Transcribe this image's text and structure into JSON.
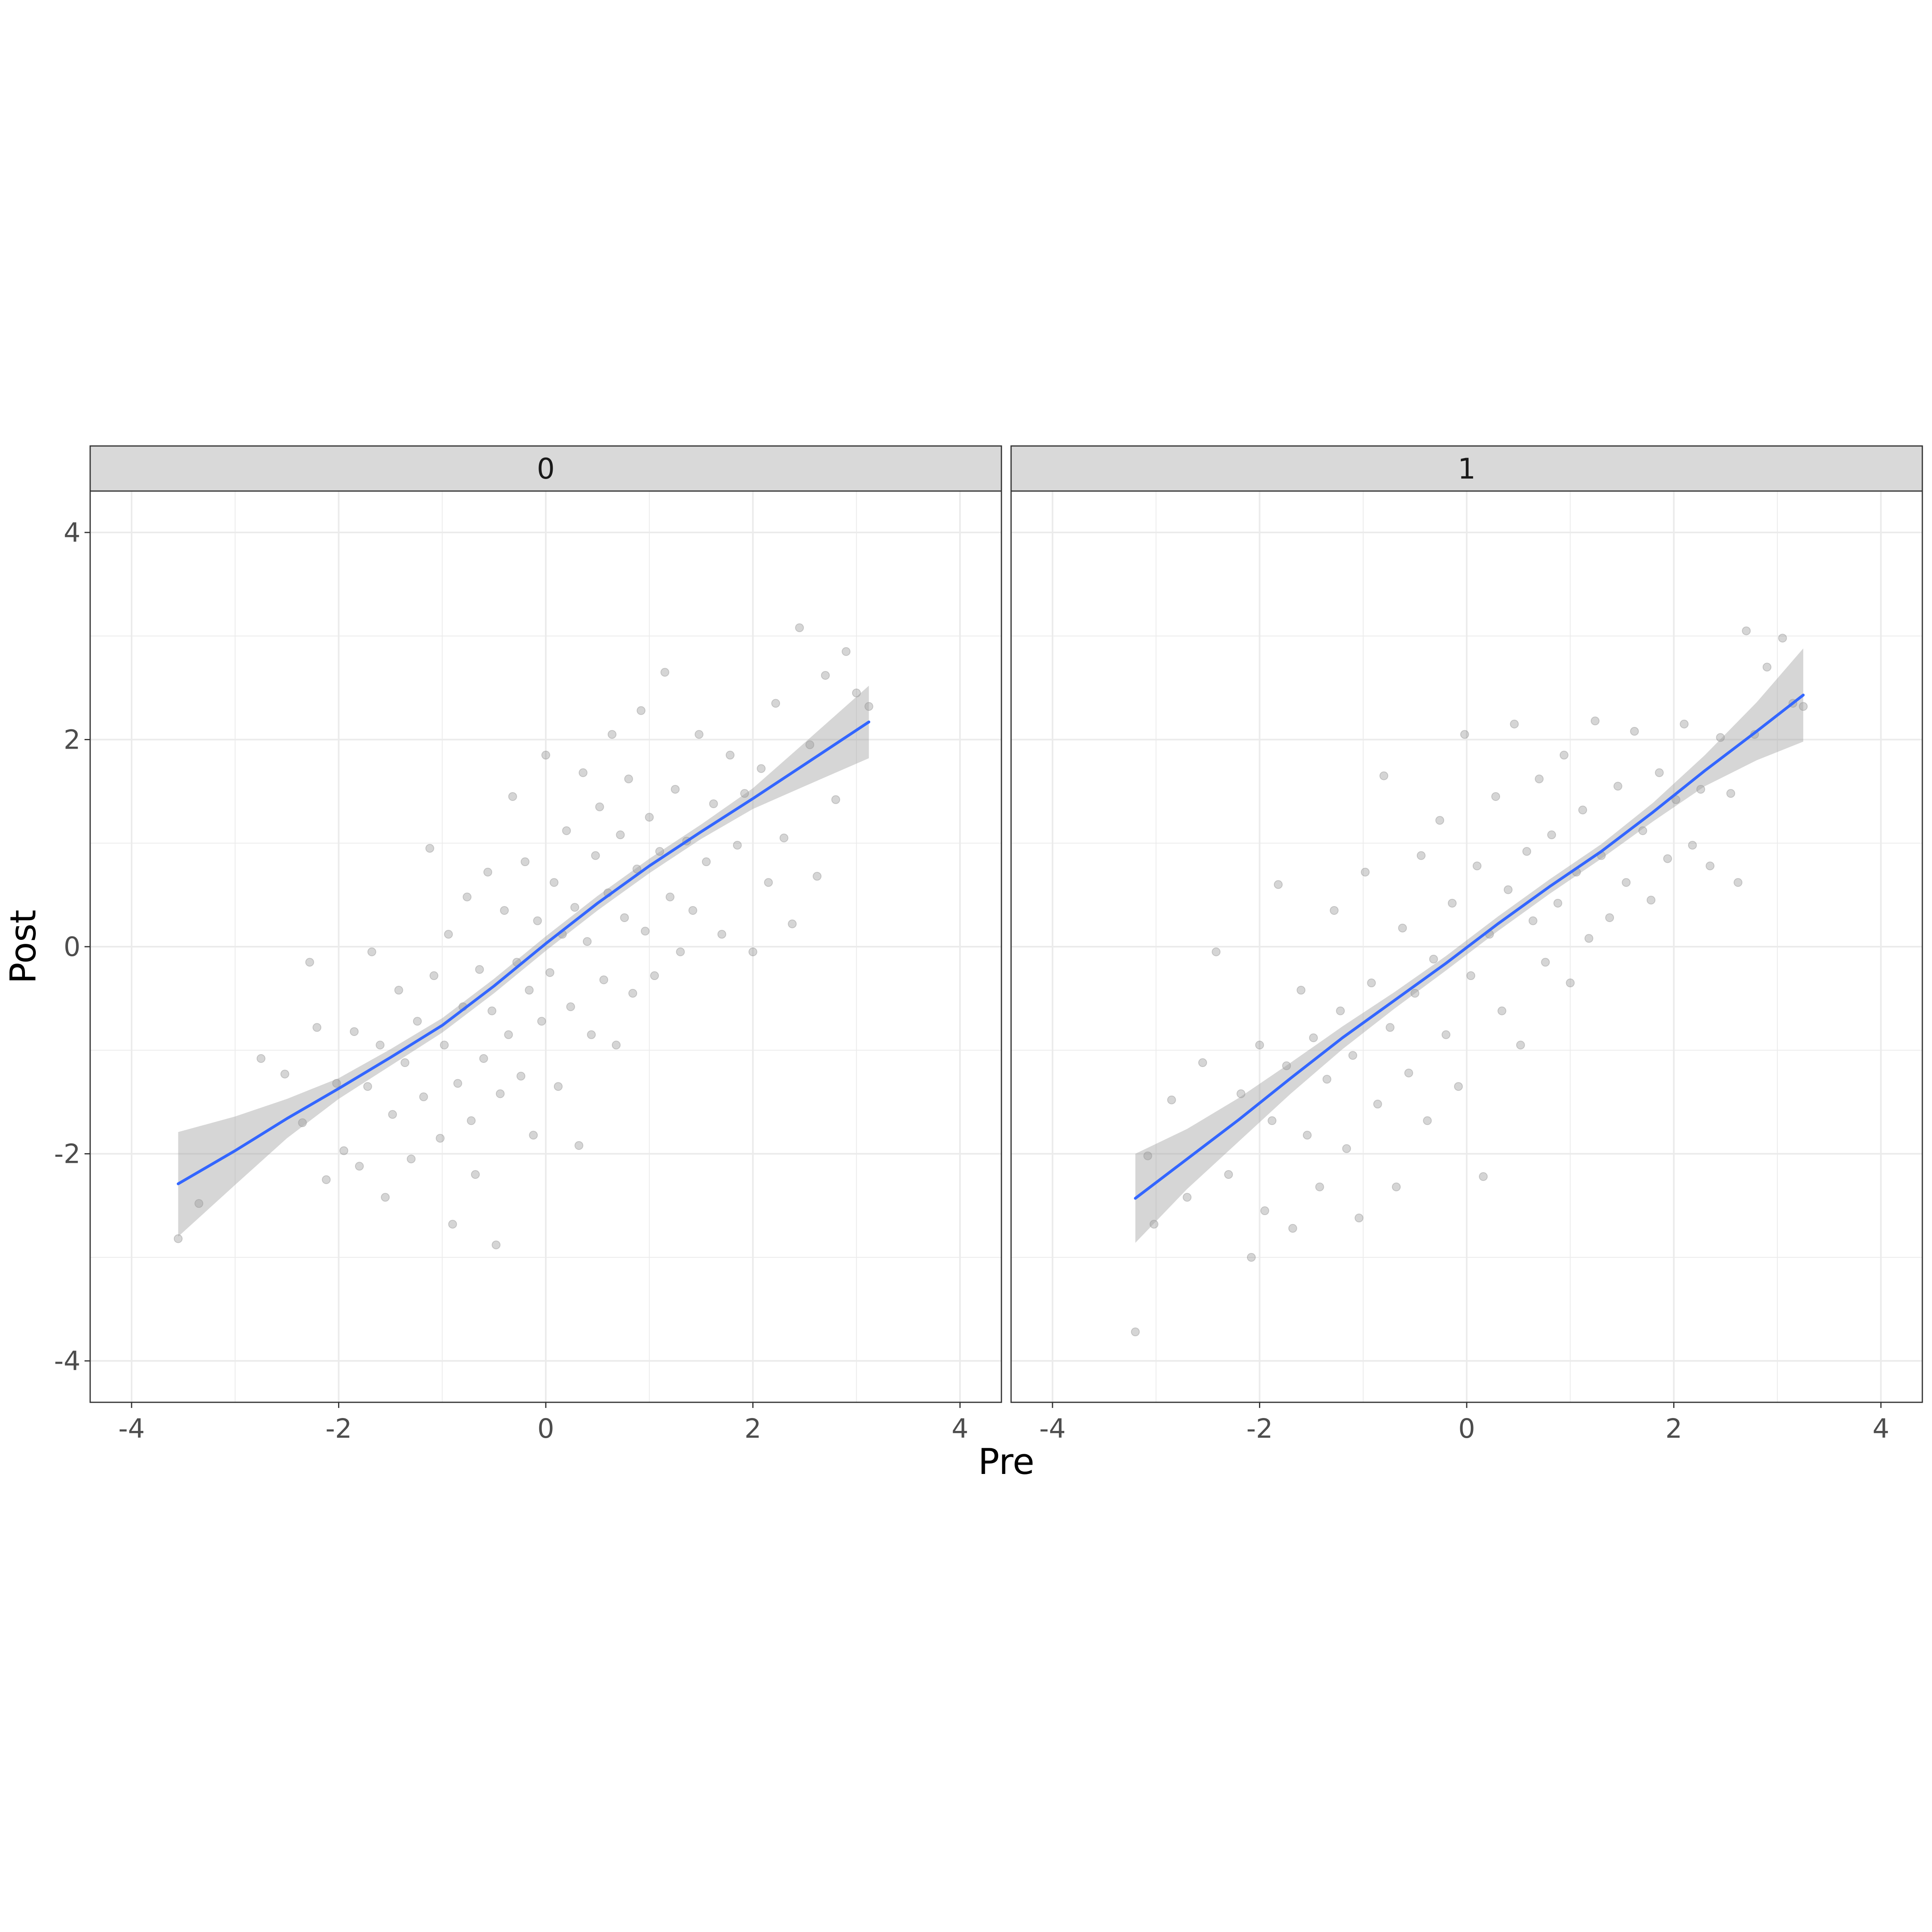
{
  "chart_data": {
    "type": "scatter",
    "xlabel": "Pre",
    "ylabel": "Post",
    "xlim": [
      -4.4,
      4.4
    ],
    "ylim": [
      -4.4,
      4.4
    ],
    "x_ticks": [
      "-4",
      "-2",
      "0",
      "2",
      "4"
    ],
    "y_ticks": [
      "-4",
      "-2",
      "0",
      "2",
      "4"
    ],
    "grid": true,
    "colors": {
      "points": "#595959",
      "smooth_line": "#3366ff",
      "ribbon": "#999999",
      "strip_fill": "#d9d9d9",
      "grid": "#ebebeb",
      "panel_border": "#333333"
    },
    "panels": [
      {
        "strip_label": "0",
        "smooth": {
          "x": [
            -3.55,
            -3.0,
            -2.5,
            -2.0,
            -1.5,
            -1.0,
            -0.5,
            0.0,
            0.5,
            1.0,
            1.5,
            2.0,
            2.5,
            3.12
          ],
          "y": [
            -2.29,
            -1.97,
            -1.66,
            -1.37,
            -1.07,
            -0.76,
            -0.38,
            0.03,
            0.42,
            0.78,
            1.11,
            1.43,
            1.76,
            2.17
          ],
          "lower": [
            -2.8,
            -2.3,
            -1.85,
            -1.47,
            -1.15,
            -0.83,
            -0.45,
            -0.04,
            0.35,
            0.71,
            1.04,
            1.33,
            1.55,
            1.82
          ],
          "upper": [
            -1.79,
            -1.64,
            -1.47,
            -1.27,
            -0.99,
            -0.69,
            -0.31,
            0.1,
            0.49,
            0.85,
            1.18,
            1.53,
            1.97,
            2.52
          ]
        },
        "points": [
          [
            -3.55,
            -2.82
          ],
          [
            -3.35,
            -2.48
          ],
          [
            -2.75,
            -1.08
          ],
          [
            -2.52,
            -1.23
          ],
          [
            -2.35,
            -1.7
          ],
          [
            -2.28,
            -0.15
          ],
          [
            -2.21,
            -0.78
          ],
          [
            -2.12,
            -2.25
          ],
          [
            -2.02,
            -1.32
          ],
          [
            -1.95,
            -1.97
          ],
          [
            -1.85,
            -0.82
          ],
          [
            -1.8,
            -2.12
          ],
          [
            -1.72,
            -1.35
          ],
          [
            -1.68,
            -0.05
          ],
          [
            -1.6,
            -0.95
          ],
          [
            -1.55,
            -2.42
          ],
          [
            -1.48,
            -1.62
          ],
          [
            -1.42,
            -0.42
          ],
          [
            -1.36,
            -1.12
          ],
          [
            -1.3,
            -2.05
          ],
          [
            -1.24,
            -0.72
          ],
          [
            -1.18,
            -1.45
          ],
          [
            -1.12,
            0.95
          ],
          [
            -1.08,
            -0.28
          ],
          [
            -1.02,
            -1.85
          ],
          [
            -0.98,
            -0.95
          ],
          [
            -0.94,
            0.12
          ],
          [
            -0.9,
            -2.68
          ],
          [
            -0.85,
            -1.32
          ],
          [
            -0.8,
            -0.58
          ],
          [
            -0.76,
            0.48
          ],
          [
            -0.72,
            -1.68
          ],
          [
            -0.68,
            -2.2
          ],
          [
            -0.64,
            -0.22
          ],
          [
            -0.6,
            -1.08
          ],
          [
            -0.56,
            0.72
          ],
          [
            -0.52,
            -0.62
          ],
          [
            -0.48,
            -2.88
          ],
          [
            -0.44,
            -1.42
          ],
          [
            -0.4,
            0.35
          ],
          [
            -0.36,
            -0.85
          ],
          [
            -0.32,
            1.45
          ],
          [
            -0.28,
            -0.15
          ],
          [
            -0.24,
            -1.25
          ],
          [
            -0.2,
            0.82
          ],
          [
            -0.16,
            -0.42
          ],
          [
            -0.12,
            -1.82
          ],
          [
            -0.08,
            0.25
          ],
          [
            -0.04,
            -0.72
          ],
          [
            0.0,
            1.85
          ],
          [
            0.04,
            -0.25
          ],
          [
            0.08,
            0.62
          ],
          [
            0.12,
            -1.35
          ],
          [
            0.16,
            0.12
          ],
          [
            0.2,
            1.12
          ],
          [
            0.24,
            -0.58
          ],
          [
            0.28,
            0.38
          ],
          [
            0.32,
            -1.92
          ],
          [
            0.36,
            1.68
          ],
          [
            0.4,
            0.05
          ],
          [
            0.44,
            -0.85
          ],
          [
            0.48,
            0.88
          ],
          [
            0.52,
            1.35
          ],
          [
            0.56,
            -0.32
          ],
          [
            0.6,
            0.52
          ],
          [
            0.64,
            2.05
          ],
          [
            0.68,
            -0.95
          ],
          [
            0.72,
            1.08
          ],
          [
            0.76,
            0.28
          ],
          [
            0.8,
            1.62
          ],
          [
            0.84,
            -0.45
          ],
          [
            0.88,
            0.75
          ],
          [
            0.92,
            2.28
          ],
          [
            0.96,
            0.15
          ],
          [
            1.0,
            1.25
          ],
          [
            1.05,
            -0.28
          ],
          [
            1.1,
            0.92
          ],
          [
            1.15,
            2.65
          ],
          [
            1.2,
            0.48
          ],
          [
            1.25,
            1.52
          ],
          [
            1.3,
            -0.05
          ],
          [
            1.36,
            1.02
          ],
          [
            1.42,
            0.35
          ],
          [
            1.48,
            2.05
          ],
          [
            1.55,
            0.82
          ],
          [
            1.62,
            1.38
          ],
          [
            1.7,
            0.12
          ],
          [
            1.78,
            1.85
          ],
          [
            1.85,
            0.98
          ],
          [
            1.92,
            1.48
          ],
          [
            2.0,
            -0.05
          ],
          [
            2.08,
            1.72
          ],
          [
            2.15,
            0.62
          ],
          [
            2.22,
            2.35
          ],
          [
            2.3,
            1.05
          ],
          [
            2.38,
            0.22
          ],
          [
            2.45,
            3.08
          ],
          [
            2.55,
            1.95
          ],
          [
            2.62,
            0.68
          ],
          [
            2.7,
            2.62
          ],
          [
            2.8,
            1.42
          ],
          [
            2.9,
            2.85
          ],
          [
            3.0,
            2.45
          ],
          [
            3.12,
            2.32
          ]
        ]
      },
      {
        "strip_label": "1",
        "smooth": {
          "x": [
            -3.2,
            -2.7,
            -2.2,
            -1.7,
            -1.2,
            -0.7,
            -0.2,
            0.3,
            0.8,
            1.3,
            1.8,
            2.3,
            2.8,
            3.25
          ],
          "y": [
            -2.43,
            -2.05,
            -1.67,
            -1.27,
            -0.88,
            -0.52,
            -0.16,
            0.22,
            0.58,
            0.92,
            1.3,
            1.7,
            2.08,
            2.43
          ],
          "lower": [
            -2.86,
            -2.34,
            -1.88,
            -1.42,
            -0.99,
            -0.6,
            -0.23,
            0.15,
            0.51,
            0.85,
            1.21,
            1.55,
            1.8,
            1.98
          ],
          "upper": [
            -2.0,
            -1.76,
            -1.46,
            -1.12,
            -0.77,
            -0.44,
            -0.09,
            0.29,
            0.65,
            0.99,
            1.39,
            1.85,
            2.36,
            2.88
          ]
        },
        "points": [
          [
            -3.2,
            -3.72
          ],
          [
            -3.08,
            -2.02
          ],
          [
            -3.02,
            -2.68
          ],
          [
            -2.85,
            -1.48
          ],
          [
            -2.7,
            -2.42
          ],
          [
            -2.55,
            -1.12
          ],
          [
            -2.42,
            -0.05
          ],
          [
            -2.3,
            -2.2
          ],
          [
            -2.18,
            -1.42
          ],
          [
            -2.08,
            -3.0
          ],
          [
            -2.0,
            -0.95
          ],
          [
            -1.95,
            -2.55
          ],
          [
            -1.88,
            -1.68
          ],
          [
            -1.82,
            0.6
          ],
          [
            -1.74,
            -1.15
          ],
          [
            -1.68,
            -2.72
          ],
          [
            -1.6,
            -0.42
          ],
          [
            -1.54,
            -1.82
          ],
          [
            -1.48,
            -0.88
          ],
          [
            -1.42,
            -2.32
          ],
          [
            -1.35,
            -1.28
          ],
          [
            -1.28,
            0.35
          ],
          [
            -1.22,
            -0.62
          ],
          [
            -1.16,
            -1.95
          ],
          [
            -1.1,
            -1.05
          ],
          [
            -1.04,
            -2.62
          ],
          [
            -0.98,
            0.72
          ],
          [
            -0.92,
            -0.35
          ],
          [
            -0.86,
            -1.52
          ],
          [
            -0.8,
            1.65
          ],
          [
            -0.74,
            -0.78
          ],
          [
            -0.68,
            -2.32
          ],
          [
            -0.62,
            0.18
          ],
          [
            -0.56,
            -1.22
          ],
          [
            -0.5,
            -0.45
          ],
          [
            -0.44,
            0.88
          ],
          [
            -0.38,
            -1.68
          ],
          [
            -0.32,
            -0.12
          ],
          [
            -0.26,
            1.22
          ],
          [
            -0.2,
            -0.85
          ],
          [
            -0.14,
            0.42
          ],
          [
            -0.08,
            -1.35
          ],
          [
            -0.02,
            2.05
          ],
          [
            0.04,
            -0.28
          ],
          [
            0.1,
            0.78
          ],
          [
            0.16,
            -2.22
          ],
          [
            0.22,
            0.12
          ],
          [
            0.28,
            1.45
          ],
          [
            0.34,
            -0.62
          ],
          [
            0.4,
            0.55
          ],
          [
            0.46,
            2.15
          ],
          [
            0.52,
            -0.95
          ],
          [
            0.58,
            0.92
          ],
          [
            0.64,
            0.25
          ],
          [
            0.7,
            1.62
          ],
          [
            0.76,
            -0.15
          ],
          [
            0.82,
            1.08
          ],
          [
            0.88,
            0.42
          ],
          [
            0.94,
            1.85
          ],
          [
            1.0,
            -0.35
          ],
          [
            1.06,
            0.72
          ],
          [
            1.12,
            1.32
          ],
          [
            1.18,
            0.08
          ],
          [
            1.24,
            2.18
          ],
          [
            1.3,
            0.88
          ],
          [
            1.38,
            0.28
          ],
          [
            1.46,
            1.55
          ],
          [
            1.54,
            0.62
          ],
          [
            1.62,
            2.08
          ],
          [
            1.7,
            1.12
          ],
          [
            1.78,
            0.45
          ],
          [
            1.86,
            1.68
          ],
          [
            1.94,
            0.85
          ],
          [
            2.02,
            1.42
          ],
          [
            2.1,
            2.15
          ],
          [
            2.18,
            0.98
          ],
          [
            2.26,
            1.52
          ],
          [
            2.35,
            0.78
          ],
          [
            2.45,
            2.02
          ],
          [
            2.55,
            1.48
          ],
          [
            2.62,
            0.62
          ],
          [
            2.7,
            3.05
          ],
          [
            2.78,
            2.05
          ],
          [
            2.9,
            2.7
          ],
          [
            3.05,
            2.98
          ],
          [
            3.15,
            2.35
          ],
          [
            3.25,
            2.32
          ]
        ]
      }
    ]
  }
}
